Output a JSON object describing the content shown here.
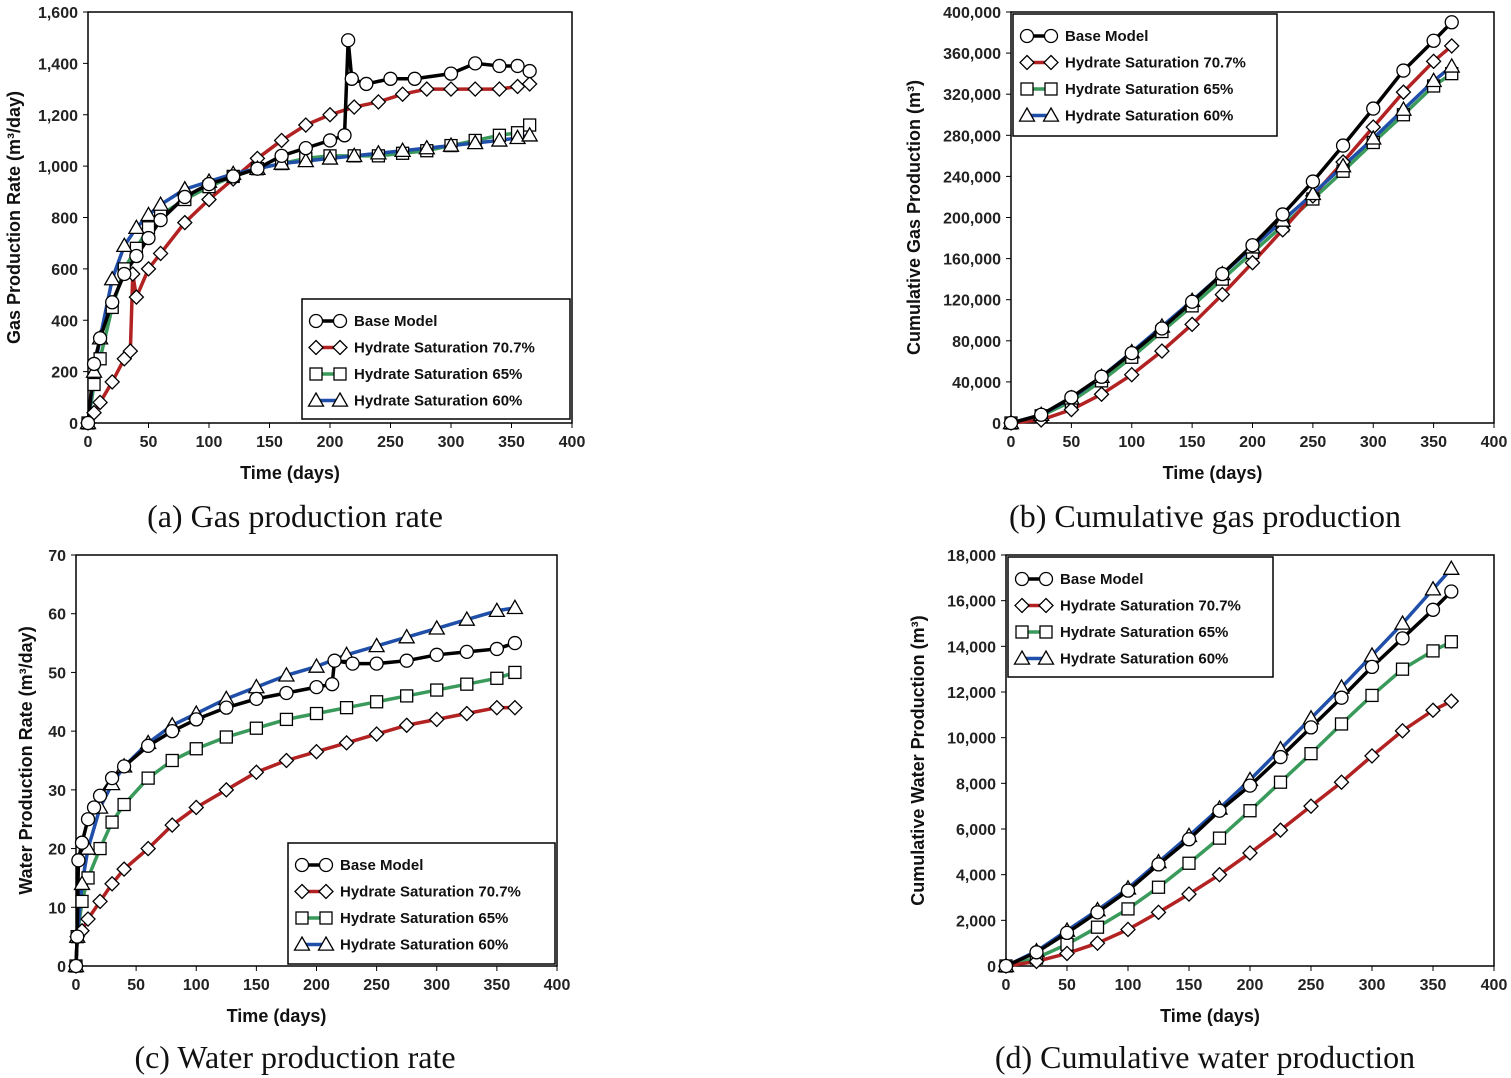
{
  "series_styles": [
    {
      "color": "#000000",
      "marker": "circle"
    },
    {
      "color": "#b22222",
      "marker": "diamond"
    },
    {
      "color": "#3a9a5b",
      "marker": "square"
    },
    {
      "color": "#1f4fa8",
      "marker": "triangle"
    }
  ],
  "chart_data": [
    {
      "type": "line",
      "caption": "(a) Gas production rate",
      "xlabel": "Time (days)",
      "ylabel": "Gas Production Rate (m³/day)",
      "xlim": [
        0,
        400
      ],
      "ylim": [
        0,
        1600
      ],
      "xticks": [
        "0",
        "50",
        "100",
        "150",
        "200",
        "250",
        "300",
        "350",
        "400"
      ],
      "yticks": [
        "0",
        "200",
        "400",
        "600",
        "800",
        "1,000",
        "1,200",
        "1,400",
        "1,600"
      ],
      "legend_position": "lower-right",
      "series": [
        {
          "name": "Base Model",
          "x": [
            0,
            5,
            10,
            20,
            30,
            40,
            50,
            60,
            80,
            100,
            120,
            140,
            160,
            180,
            200,
            212,
            215,
            218,
            230,
            250,
            270,
            300,
            320,
            340,
            355,
            365
          ],
          "y": [
            0,
            230,
            330,
            470,
            580,
            650,
            720,
            790,
            880,
            930,
            960,
            990,
            1040,
            1070,
            1100,
            1120,
            1490,
            1340,
            1320,
            1340,
            1340,
            1360,
            1400,
            1390,
            1390,
            1370
          ]
        },
        {
          "name": "Hydrate Saturation 70.7%",
          "x": [
            0,
            5,
            10,
            20,
            30,
            35,
            37,
            40,
            50,
            60,
            80,
            100,
            120,
            140,
            160,
            180,
            200,
            220,
            240,
            260,
            280,
            300,
            320,
            340,
            355,
            365
          ],
          "y": [
            0,
            40,
            80,
            160,
            250,
            280,
            580,
            490,
            600,
            660,
            780,
            870,
            950,
            1030,
            1100,
            1160,
            1200,
            1230,
            1250,
            1280,
            1300,
            1300,
            1300,
            1300,
            1310,
            1320
          ]
        },
        {
          "name": "Hydrate Saturation 65%",
          "x": [
            0,
            5,
            10,
            20,
            30,
            40,
            50,
            60,
            80,
            100,
            120,
            140,
            160,
            180,
            200,
            220,
            240,
            260,
            280,
            300,
            320,
            340,
            355,
            365
          ],
          "y": [
            0,
            150,
            250,
            450,
            600,
            680,
            760,
            810,
            870,
            920,
            960,
            990,
            1010,
            1030,
            1040,
            1040,
            1040,
            1050,
            1060,
            1080,
            1100,
            1120,
            1130,
            1160
          ]
        },
        {
          "name": "Hydrate Saturation 60%",
          "x": [
            0,
            5,
            10,
            20,
            30,
            40,
            50,
            60,
            80,
            100,
            120,
            140,
            160,
            180,
            200,
            220,
            240,
            260,
            280,
            300,
            320,
            340,
            355,
            365
          ],
          "y": [
            0,
            200,
            330,
            560,
            690,
            760,
            810,
            850,
            910,
            940,
            970,
            990,
            1010,
            1020,
            1030,
            1040,
            1050,
            1060,
            1070,
            1080,
            1090,
            1100,
            1110,
            1120
          ]
        }
      ]
    },
    {
      "type": "line",
      "caption": "(b) Cumulative gas production",
      "xlabel": "Time (days)",
      "ylabel": "Cumulative Gas Production (m³)",
      "xlim": [
        0,
        400
      ],
      "ylim": [
        0,
        400000
      ],
      "xticks": [
        "0",
        "50",
        "100",
        "150",
        "200",
        "250",
        "300",
        "350",
        "400"
      ],
      "yticks": [
        "0",
        "40,000",
        "80,000",
        "120,000",
        "160,000",
        "200,000",
        "240,000",
        "280,000",
        "320,000",
        "360,000",
        "400,000"
      ],
      "legend_position": "top-left",
      "series": [
        {
          "name": "Base Model",
          "x": [
            0,
            25,
            50,
            75,
            100,
            125,
            150,
            175,
            200,
            225,
            250,
            275,
            300,
            325,
            350,
            365
          ],
          "y": [
            0,
            8000,
            25000,
            45000,
            68000,
            92000,
            118000,
            145000,
            173000,
            203000,
            235000,
            270000,
            306000,
            343000,
            372000,
            390000
          ]
        },
        {
          "name": "Hydrate Saturation 70.7%",
          "x": [
            0,
            25,
            50,
            75,
            100,
            125,
            150,
            175,
            200,
            225,
            250,
            275,
            300,
            325,
            350,
            365
          ],
          "y": [
            0,
            3000,
            13000,
            28000,
            47000,
            70000,
            96000,
            125000,
            156000,
            188000,
            221000,
            254000,
            288000,
            322000,
            352000,
            367000
          ]
        },
        {
          "name": "Hydrate Saturation 65%",
          "x": [
            0,
            25,
            50,
            75,
            100,
            125,
            150,
            175,
            200,
            225,
            250,
            275,
            300,
            325,
            350,
            365
          ],
          "y": [
            0,
            7000,
            21000,
            41000,
            64000,
            89000,
            114000,
            140000,
            166000,
            192000,
            218000,
            245000,
            273000,
            300000,
            328000,
            340000
          ]
        },
        {
          "name": "Hydrate Saturation 60%",
          "x": [
            0,
            25,
            50,
            75,
            100,
            125,
            150,
            175,
            200,
            225,
            250,
            275,
            300,
            325,
            350,
            365
          ],
          "y": [
            0,
            8000,
            24000,
            45000,
            69000,
            94000,
            119000,
            145000,
            171000,
            197000,
            223000,
            250000,
            277000,
            305000,
            333000,
            347000
          ]
        }
      ]
    },
    {
      "type": "line",
      "caption": "(c) Water production rate",
      "xlabel": "Time (days)",
      "ylabel": "Water Production Rate (m³/day)",
      "xlim": [
        0,
        400
      ],
      "ylim": [
        0,
        70
      ],
      "xticks": [
        "0",
        "50",
        "100",
        "150",
        "200",
        "250",
        "300",
        "350",
        "400"
      ],
      "yticks": [
        "0",
        "10",
        "20",
        "30",
        "40",
        "50",
        "60",
        "70"
      ],
      "legend_position": "lower-right",
      "series": [
        {
          "name": "Base Model",
          "x": [
            0,
            1,
            2,
            5,
            10,
            15,
            20,
            30,
            40,
            60,
            80,
            100,
            125,
            150,
            175,
            200,
            213,
            215,
            230,
            250,
            275,
            300,
            325,
            350,
            365
          ],
          "y": [
            0,
            5,
            18,
            21,
            25,
            27,
            29,
            32,
            34,
            37.5,
            40,
            42,
            44,
            45.5,
            46.5,
            47.5,
            48,
            52,
            51.5,
            51.5,
            52,
            53,
            53.5,
            54,
            55
          ]
        },
        {
          "name": "Hydrate Saturation 70.7%",
          "x": [
            0,
            1,
            5,
            10,
            20,
            30,
            40,
            60,
            80,
            100,
            125,
            150,
            175,
            200,
            225,
            250,
            275,
            300,
            325,
            350,
            365
          ],
          "y": [
            0,
            5,
            6,
            8,
            11,
            14,
            16.5,
            20,
            24,
            27,
            30,
            33,
            35,
            36.5,
            38,
            39.5,
            41,
            42,
            43,
            44,
            44
          ]
        },
        {
          "name": "Hydrate Saturation 65%",
          "x": [
            0,
            1,
            5,
            10,
            20,
            30,
            40,
            60,
            80,
            100,
            125,
            150,
            175,
            200,
            225,
            250,
            275,
            300,
            325,
            350,
            365
          ],
          "y": [
            0,
            5,
            11,
            15,
            20,
            24.5,
            27.5,
            32,
            35,
            37,
            39,
            40.5,
            42,
            43,
            44,
            45,
            46,
            47,
            48,
            49,
            50
          ]
        },
        {
          "name": "Hydrate Saturation 60%",
          "x": [
            0,
            1,
            5,
            10,
            20,
            30,
            40,
            60,
            80,
            100,
            125,
            150,
            175,
            200,
            225,
            250,
            275,
            300,
            325,
            350,
            365
          ],
          "y": [
            0,
            5,
            14,
            20,
            27,
            31,
            34,
            38,
            41,
            43,
            45.5,
            47.5,
            49.5,
            51,
            53,
            54.5,
            56,
            57.5,
            59,
            60.5,
            61
          ]
        }
      ]
    },
    {
      "type": "line",
      "caption": "(d) Cumulative water production",
      "xlabel": "Time (days)",
      "ylabel": "Cumulative Water Production (m³)",
      "xlim": [
        0,
        400
      ],
      "ylim": [
        0,
        18000
      ],
      "xticks": [
        "0",
        "50",
        "100",
        "150",
        "200",
        "250",
        "300",
        "350",
        "400"
      ],
      "yticks": [
        "0",
        "2,000",
        "4,000",
        "6,000",
        "8,000",
        "10,000",
        "12,000",
        "14,000",
        "16,000",
        "18,000"
      ],
      "legend_position": "top-left",
      "series": [
        {
          "name": "Base Model",
          "x": [
            0,
            25,
            50,
            75,
            100,
            125,
            150,
            175,
            200,
            225,
            250,
            275,
            300,
            325,
            350,
            365
          ],
          "y": [
            0,
            600,
            1450,
            2350,
            3300,
            4450,
            5550,
            6800,
            7900,
            9150,
            10450,
            11750,
            13100,
            14350,
            15600,
            16400
          ]
        },
        {
          "name": "Hydrate Saturation 70.7%",
          "x": [
            0,
            25,
            50,
            75,
            100,
            125,
            150,
            175,
            200,
            225,
            250,
            275,
            300,
            325,
            350,
            365
          ],
          "y": [
            0,
            200,
            550,
            1000,
            1600,
            2350,
            3150,
            4000,
            4950,
            5950,
            7000,
            8050,
            9200,
            10300,
            11200,
            11600
          ]
        },
        {
          "name": "Hydrate Saturation 65%",
          "x": [
            0,
            25,
            50,
            75,
            100,
            125,
            150,
            175,
            200,
            225,
            250,
            275,
            300,
            325,
            350,
            365
          ],
          "y": [
            0,
            350,
            950,
            1700,
            2500,
            3450,
            4500,
            5600,
            6800,
            8050,
            9300,
            10600,
            11850,
            13000,
            13800,
            14200
          ]
        },
        {
          "name": "Hydrate Saturation 60%",
          "x": [
            0,
            25,
            50,
            75,
            100,
            125,
            150,
            175,
            200,
            225,
            250,
            275,
            300,
            325,
            350,
            365
          ],
          "y": [
            0,
            650,
            1550,
            2450,
            3400,
            4550,
            5700,
            6900,
            8150,
            9500,
            10850,
            12200,
            13600,
            15000,
            16500,
            17400
          ]
        }
      ]
    }
  ]
}
